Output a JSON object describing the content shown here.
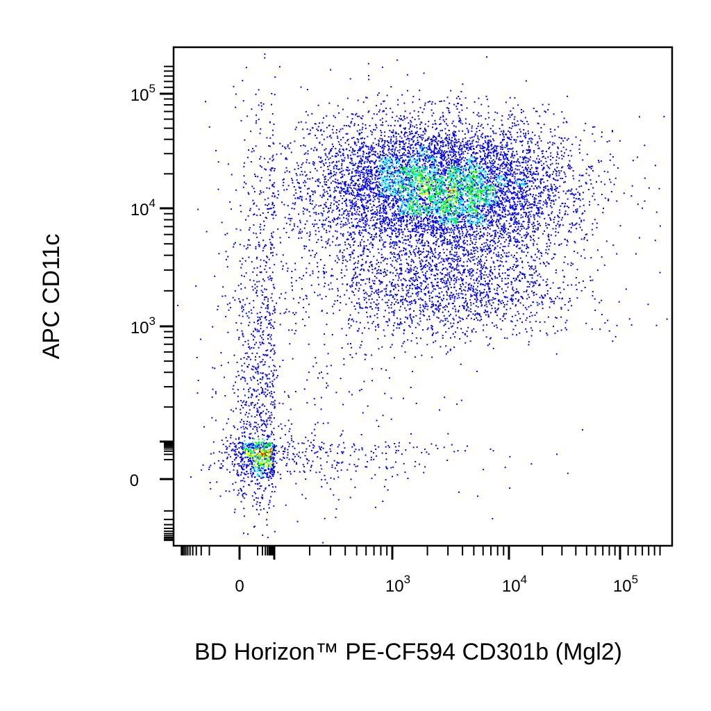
{
  "chart_data": {
    "type": "scatter",
    "subtype": "flow-cytometry-density-dot-plot",
    "title": "",
    "xlabel": "BD Horizon™ PE-CF594 CD301b (Mgl2)",
    "ylabel": "APC CD11c",
    "x_scale": "biexponential (linear near 0, log above ~10^2)",
    "y_scale": "biexponential (linear near 0, log above ~10^2)",
    "xlim": [
      -120,
      180000
    ],
    "ylim": [
      -110,
      180000
    ],
    "x_ticks": [
      {
        "value": 0,
        "label": "0"
      },
      {
        "value": 1000,
        "label": "10",
        "exp": "3"
      },
      {
        "value": 10000,
        "label": "10",
        "exp": "4"
      },
      {
        "value": 100000,
        "label": "10",
        "exp": "5"
      }
    ],
    "y_ticks": [
      {
        "value": 0,
        "label": "0"
      },
      {
        "value": 1000,
        "label": "10",
        "exp": "3"
      },
      {
        "value": 10000,
        "label": "10",
        "exp": "4"
      },
      {
        "value": 100000,
        "label": "10",
        "exp": "5"
      }
    ],
    "grid": false,
    "legend": "none",
    "density_colors": [
      "#0000ff",
      "#00e5ff",
      "#00ff00",
      "#ffff00",
      "#ff0000"
    ],
    "populations": [
      {
        "name": "",
        "x_center": 2500,
        "y_center": 15000,
        "x_range": [
          150,
          40000
        ],
        "y_range": [
          3000,
          60000
        ],
        "share": 0.68
      },
      {
        "name": "",
        "x_center": 20,
        "y_center": 100,
        "x_range": [
          -60,
          250
        ],
        "y_range": [
          -80,
          3000
        ],
        "share": 0.18
      },
      {
        "name": "",
        "x_center": 3000,
        "y_center": 2000,
        "x_range": [
          150,
          40000
        ],
        "y_range": [
          600,
          4500
        ],
        "share": 0.14
      }
    ]
  }
}
